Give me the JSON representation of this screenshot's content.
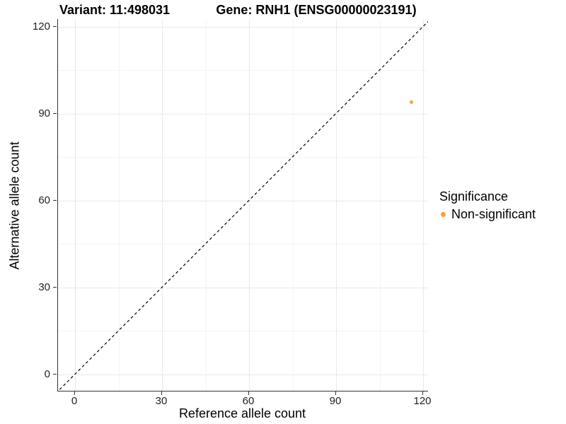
{
  "titles": {
    "variant": "Variant: 11:498031",
    "gene": "Gene: RNH1 (ENSG00000023191)"
  },
  "axes": {
    "x": {
      "label": "Reference allele count"
    },
    "y": {
      "label": "Alternative allele count"
    }
  },
  "legend": {
    "title": "Significance",
    "items": [
      {
        "label": "Non-significant",
        "color": "#F9A13B"
      }
    ]
  },
  "chart_data": {
    "type": "scatter",
    "title_left": "Variant: 11:498031",
    "title_right": "Gene: RNH1 (ENSG00000023191)",
    "xlabel": "Reference allele count",
    "ylabel": "Alternative allele count",
    "x_ticks": [
      0,
      30,
      60,
      90,
      120
    ],
    "y_ticks": [
      0,
      30,
      60,
      90,
      120
    ],
    "xlim": [
      -6,
      122
    ],
    "ylim": [
      -6,
      122
    ],
    "grid": "major+minor",
    "legend_position": "right",
    "series": [
      {
        "name": "Non-significant",
        "color": "#F9A13B",
        "points": [
          {
            "x": 116,
            "y": 94
          }
        ]
      }
    ],
    "reference_line": {
      "type": "identity y=x",
      "style": "dashed",
      "color": "#000000"
    }
  },
  "colors": {
    "point": "#F9A13B",
    "grid_major": "#E9E9E9",
    "grid_minor": "#F4F4F4",
    "axis_line": "#333333"
  }
}
